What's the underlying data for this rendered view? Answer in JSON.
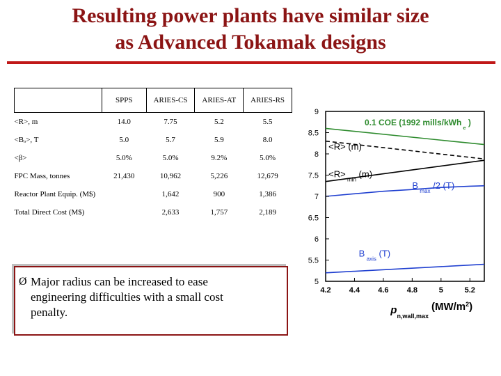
{
  "slide": {
    "title_line1": "Resulting power plants have similar size",
    "title_line2": "as Advanced Tokamak designs",
    "title_color": "#8b1414",
    "rule_color": "#c01818"
  },
  "table": {
    "columns": [
      "",
      "SPPS",
      "ARIES-CS",
      "ARIES-AT",
      "ARIES-RS"
    ],
    "rows": [
      {
        "label": "<R>, m",
        "values": [
          "14.0",
          "7.75",
          "5.2",
          "5.5"
        ]
      },
      {
        "label": "<Bₒ>, T",
        "values": [
          "5.0",
          "5.7",
          "5.9",
          "8.0"
        ]
      },
      {
        "label": "<β>",
        "values": [
          "5.0%",
          "5.0%",
          "9.2%",
          "5.0%"
        ]
      },
      {
        "label": "FPC Mass, tonnes",
        "values": [
          "21,430",
          "10,962",
          "5,226",
          "12,679"
        ]
      },
      {
        "label": "Reactor Plant Equip. (M$)",
        "values": [
          "",
          "1,642",
          "900",
          "1,386"
        ]
      },
      {
        "label": "Total Direct Cost (M$)",
        "values": [
          "",
          "2,633",
          "1,757",
          "2,189"
        ]
      }
    ]
  },
  "note": {
    "bullet": "Ø",
    "text_line1": "Major radius can be increased to ease",
    "text_line2": "engineering difficulties with a small cost",
    "text_line3": "penalty."
  },
  "chart_data": {
    "type": "line",
    "xlabel": "p",
    "xlabel_sub": "n,wall,max",
    "xlabel_unit": "(MW/m",
    "xlabel_sup": "2",
    "xlabel_close": ")",
    "xlim": [
      4.2,
      5.3
    ],
    "ylim": [
      5,
      9
    ],
    "xticks": [
      "4.2",
      "4.4",
      "4.6",
      "4.8",
      "5",
      "5.2"
    ],
    "yticks": [
      "5",
      "5.5",
      "6",
      "6.5",
      "7",
      "7.5",
      "8",
      "8.5",
      "9"
    ],
    "series": [
      {
        "name": "0.1 COE (1992 mills/kWh",
        "name_sub": "e",
        "name_close": ")",
        "color": "#2e8b2e",
        "style": "solid",
        "x": [
          4.2,
          5.3
        ],
        "y": [
          8.6,
          8.22
        ]
      },
      {
        "name": "<R> (m)",
        "color": "#000000",
        "style": "dashed",
        "x": [
          4.2,
          5.3
        ],
        "y": [
          8.3,
          7.88
        ]
      },
      {
        "name": "<R>",
        "name_sub": "min",
        "name_close": "(m)",
        "color": "#000000",
        "style": "solid",
        "x": [
          4.2,
          5.3
        ],
        "y": [
          7.35,
          7.85
        ]
      },
      {
        "name": "B",
        "name_sub": "max",
        "name_close": "/2 (T)",
        "color": "#1f3fd0",
        "style": "solid",
        "x": [
          4.2,
          4.4,
          4.6,
          4.8,
          5.0,
          5.2,
          5.3
        ],
        "y": [
          7.0,
          7.06,
          7.12,
          7.16,
          7.21,
          7.24,
          7.25
        ]
      },
      {
        "name": "B",
        "name_sub": "axis",
        "name_close": "(T)",
        "color": "#1f3fd0",
        "style": "solid",
        "x": [
          4.2,
          5.3
        ],
        "y": [
          5.2,
          5.4
        ]
      }
    ]
  }
}
